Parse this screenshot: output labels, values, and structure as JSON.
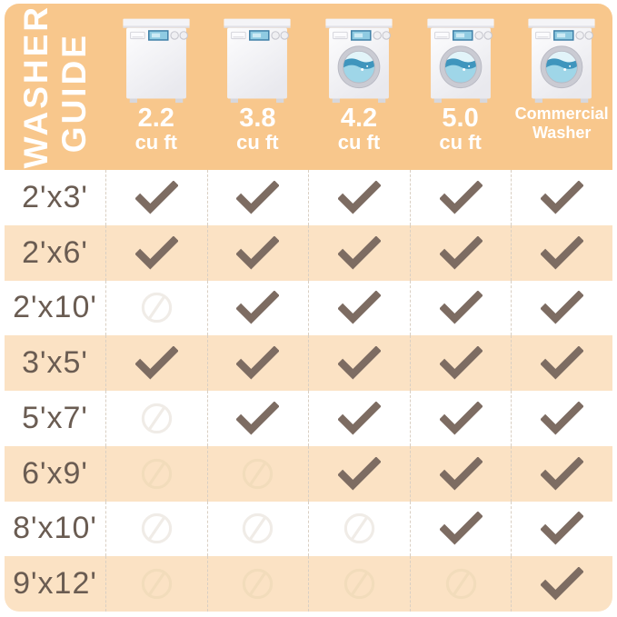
{
  "title": {
    "word1": "WASHER",
    "word2": "GUIDE"
  },
  "header_columns": [
    {
      "size": "2.2",
      "unit": "cu ft",
      "washer_style": "top-load-washer"
    },
    {
      "size": "3.8",
      "unit": "cu ft",
      "washer_style": "top-load-washer"
    },
    {
      "size": "4.2",
      "unit": "cu ft",
      "washer_style": "front-load-washer"
    },
    {
      "size": "5.0",
      "unit": "cu ft",
      "washer_style": "front-load-washer"
    },
    {
      "size": "Commercial",
      "unit": "Washer",
      "washer_style": "front-load-washer"
    }
  ],
  "icons": {
    "compatible": "checkmark-icon",
    "not_compatible": "prohibition-icon"
  },
  "colors": {
    "header-bg": "#F8C78C",
    "stripe-bg": "#FBE2C4",
    "header-text": "#FFFFFF",
    "label-text": "#6A5C52",
    "check": "#7D6C62",
    "divider": "#D9CFC3",
    "no-on-white": "#F0ECE7",
    "no-on-stripe": "#F2DCBB"
  },
  "chart_data": {
    "type": "table",
    "title": "WASHER GUIDE",
    "columns": [
      "2.2 cu ft",
      "3.8 cu ft",
      "4.2 cu ft",
      "5.0 cu ft",
      "Commercial Washer"
    ],
    "row_labels": [
      "2'x3'",
      "2'x6'",
      "2'x10'",
      "3'x5'",
      "5'x7'",
      "6'x9'",
      "8'x10'",
      "9'x12'"
    ],
    "values": [
      [
        "yes",
        "yes",
        "yes",
        "yes",
        "yes"
      ],
      [
        "yes",
        "yes",
        "yes",
        "yes",
        "yes"
      ],
      [
        "no",
        "yes",
        "yes",
        "yes",
        "yes"
      ],
      [
        "yes",
        "yes",
        "yes",
        "yes",
        "yes"
      ],
      [
        "no",
        "yes",
        "yes",
        "yes",
        "yes"
      ],
      [
        "no",
        "no",
        "yes",
        "yes",
        "yes"
      ],
      [
        "no",
        "no",
        "no",
        "yes",
        "yes"
      ],
      [
        "no",
        "no",
        "no",
        "no",
        "yes"
      ]
    ],
    "value_legend": {
      "yes": "checkmark (rug fits washer)",
      "no": "prohibition symbol (rug does not fit)"
    }
  }
}
